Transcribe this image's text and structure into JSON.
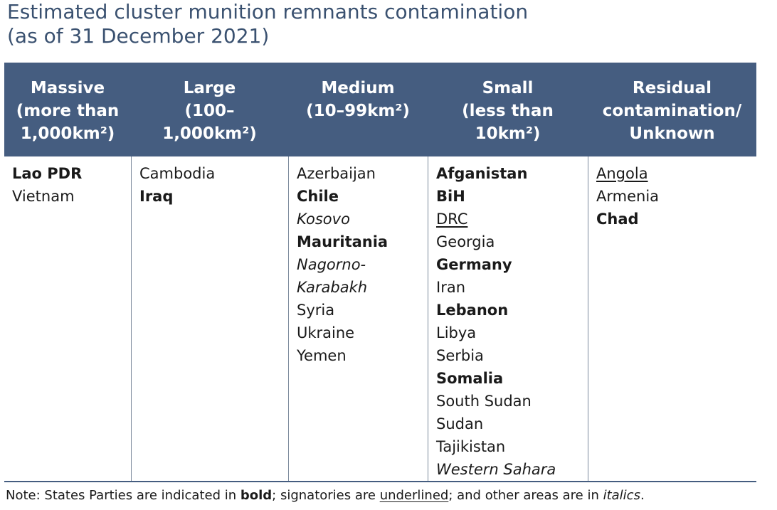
{
  "title": {
    "line1": "Estimated cluster munition remnants contamination",
    "line2": "(as of 31 December 2021)"
  },
  "columns": [
    {
      "header": [
        "Massive",
        "(more than",
        "1,000km²)"
      ],
      "entries": [
        {
          "name": "Lao PDR",
          "status": "party"
        },
        {
          "name": "Vietnam",
          "status": "none"
        }
      ]
    },
    {
      "header": [
        "Large",
        "(100–",
        "1,000km²)"
      ],
      "entries": [
        {
          "name": "Cambodia",
          "status": "none"
        },
        {
          "name": "Iraq",
          "status": "party"
        }
      ]
    },
    {
      "header": [
        "Medium",
        "(10–99km²)"
      ],
      "entries": [
        {
          "name": "Azerbaijan",
          "status": "none"
        },
        {
          "name": "Chile",
          "status": "party"
        },
        {
          "name": "Kosovo",
          "status": "other"
        },
        {
          "name": "Mauritania",
          "status": "party"
        },
        {
          "name": "Nagorno-",
          "status": "other"
        },
        {
          "name": "Karabakh",
          "status": "other"
        },
        {
          "name": "Syria",
          "status": "none"
        },
        {
          "name": "Ukraine",
          "status": "none"
        },
        {
          "name": "Yemen",
          "status": "none"
        }
      ]
    },
    {
      "header": [
        "Small",
        "(less than",
        "10km²)"
      ],
      "entries": [
        {
          "name": "Afganistan",
          "status": "party"
        },
        {
          "name": "BiH",
          "status": "party"
        },
        {
          "name": "DRC",
          "status": "signatory"
        },
        {
          "name": "Georgia",
          "status": "none"
        },
        {
          "name": "Germany",
          "status": "party"
        },
        {
          "name": "Iran",
          "status": "none"
        },
        {
          "name": "Lebanon",
          "status": "party"
        },
        {
          "name": "Libya",
          "status": "none"
        },
        {
          "name": "Serbia",
          "status": "none"
        },
        {
          "name": "Somalia",
          "status": "party"
        },
        {
          "name": "South Sudan",
          "status": "none"
        },
        {
          "name": "Sudan",
          "status": "none"
        },
        {
          "name": "Tajikistan",
          "status": "none"
        },
        {
          "name": "Western Sahara",
          "status": "other"
        }
      ]
    },
    {
      "header": [
        "Residual",
        "contamination/",
        "Unknown"
      ],
      "entries": [
        {
          "name": "Angola",
          "status": "signatory"
        },
        {
          "name": "Armenia",
          "status": "none"
        },
        {
          "name": "Chad",
          "status": "party"
        }
      ]
    }
  ],
  "note": {
    "prefix": "Note: States Parties are indicated in ",
    "bold_word": "bold",
    "mid1": "; signatories are ",
    "underline_word": "underlined",
    "mid2": "; and other areas are in ",
    "italic_word": "italics",
    "suffix": "."
  }
}
